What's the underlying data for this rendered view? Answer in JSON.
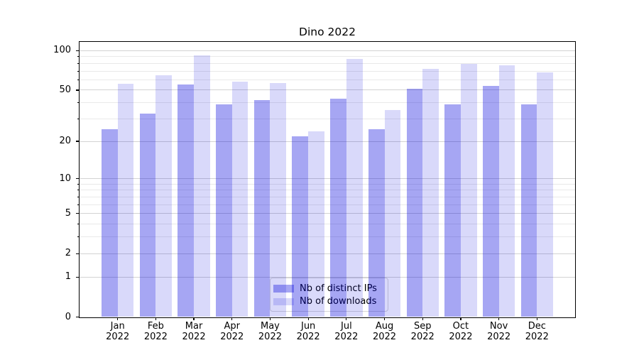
{
  "chart_data": {
    "type": "bar",
    "title": "Dino 2022",
    "categories": [
      "Jan",
      "Feb",
      "Mar",
      "Apr",
      "May",
      "Jun",
      "Jul",
      "Aug",
      "Sep",
      "Oct",
      "Nov",
      "Dec"
    ],
    "x_tick_year": "2022",
    "series": [
      {
        "name": "Nb of distinct IPs",
        "color": "rgba(0,0,220,0.35)",
        "values": [
          25,
          33,
          55,
          39,
          42,
          22,
          43,
          25,
          51,
          39,
          54,
          39
        ]
      },
      {
        "name": "Nb of downloads",
        "color": "rgba(0,0,220,0.15)",
        "values": [
          56,
          65,
          92,
          58,
          57,
          24,
          87,
          35,
          73,
          79,
          77,
          68
        ]
      }
    ],
    "yscale": "log1p",
    "ylim": [
      0,
      116
    ],
    "y_major_ticks": [
      0,
      1,
      2,
      5,
      10,
      20,
      50,
      100
    ],
    "y_minor_ticks": [
      3,
      4,
      6,
      7,
      8,
      9,
      30,
      40,
      60,
      70,
      80,
      90
    ],
    "grid": true,
    "legend_position": "lower center"
  },
  "colors": {
    "bar_distinct_ips": "#a6a6f3",
    "bar_downloads": "#d9d9fa",
    "grid_major": "#d3d3d3",
    "grid_minor": "#e9e9e9",
    "axis": "#000000",
    "legend_border": "#d5d5d5",
    "background": "#ffffff"
  }
}
